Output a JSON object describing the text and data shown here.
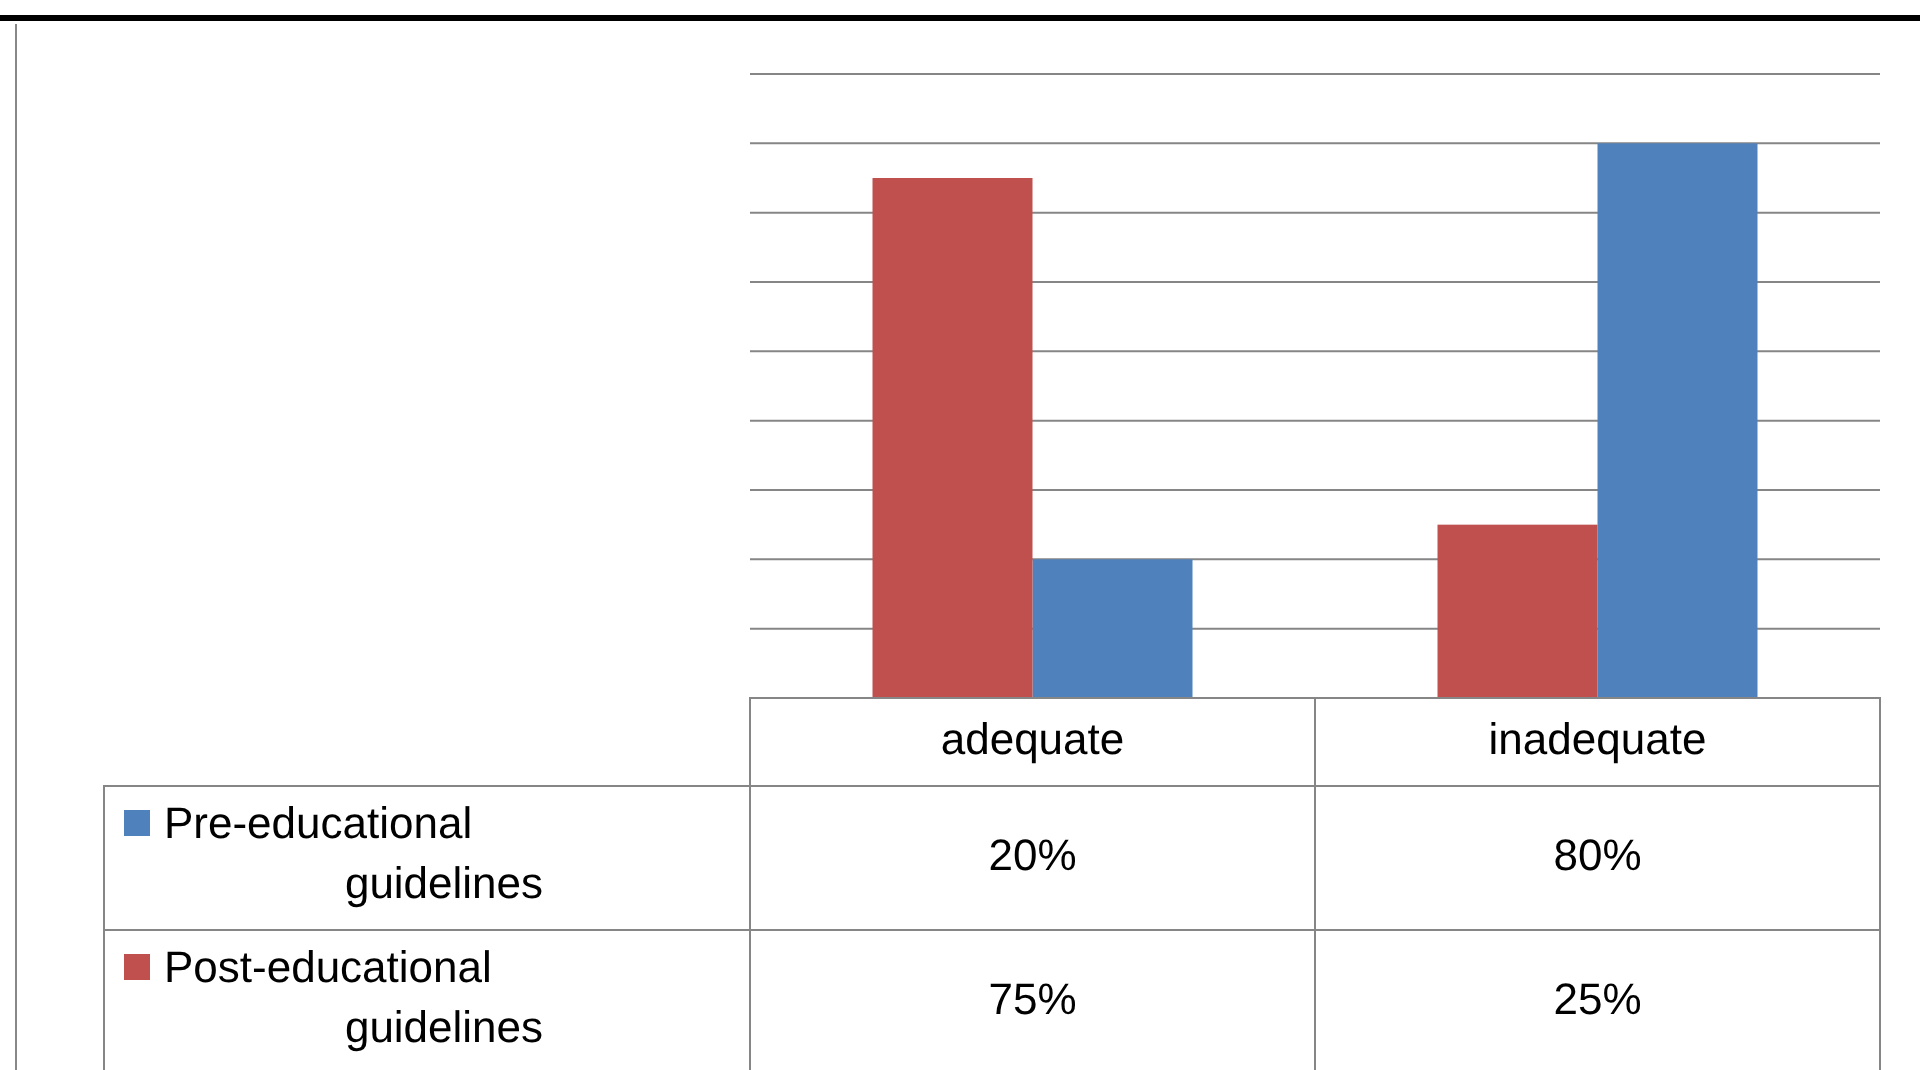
{
  "chart_data": {
    "type": "bar",
    "categories": [
      "adequate",
      "inadequate"
    ],
    "series": [
      {
        "name": "Pre-educational guidelines",
        "color": "#4f81bd",
        "values": [
          20,
          80
        ],
        "value_labels": [
          "20%",
          "80%"
        ]
      },
      {
        "name": "Post-educational guidelines",
        "color": "#c0504d",
        "values": [
          75,
          25
        ],
        "value_labels": [
          "75%",
          "25%"
        ]
      }
    ],
    "ylim": [
      0,
      90
    ],
    "yticks": [
      {
        "value": 0,
        "label": null
      },
      {
        "value": 10,
        "label": null
      },
      {
        "value": 20,
        "label": null
      },
      {
        "value": 30,
        "label": null
      },
      {
        "value": 40,
        "label": null
      },
      {
        "value": 50,
        "label": null
      },
      {
        "value": 60,
        "label": null
      },
      {
        "value": 70,
        "label": null
      },
      {
        "value": 80,
        "label": null
      },
      {
        "value": 90,
        "label": null
      }
    ],
    "grid": "y",
    "tick_labels": "x",
    "legend": "bottom"
  }
}
